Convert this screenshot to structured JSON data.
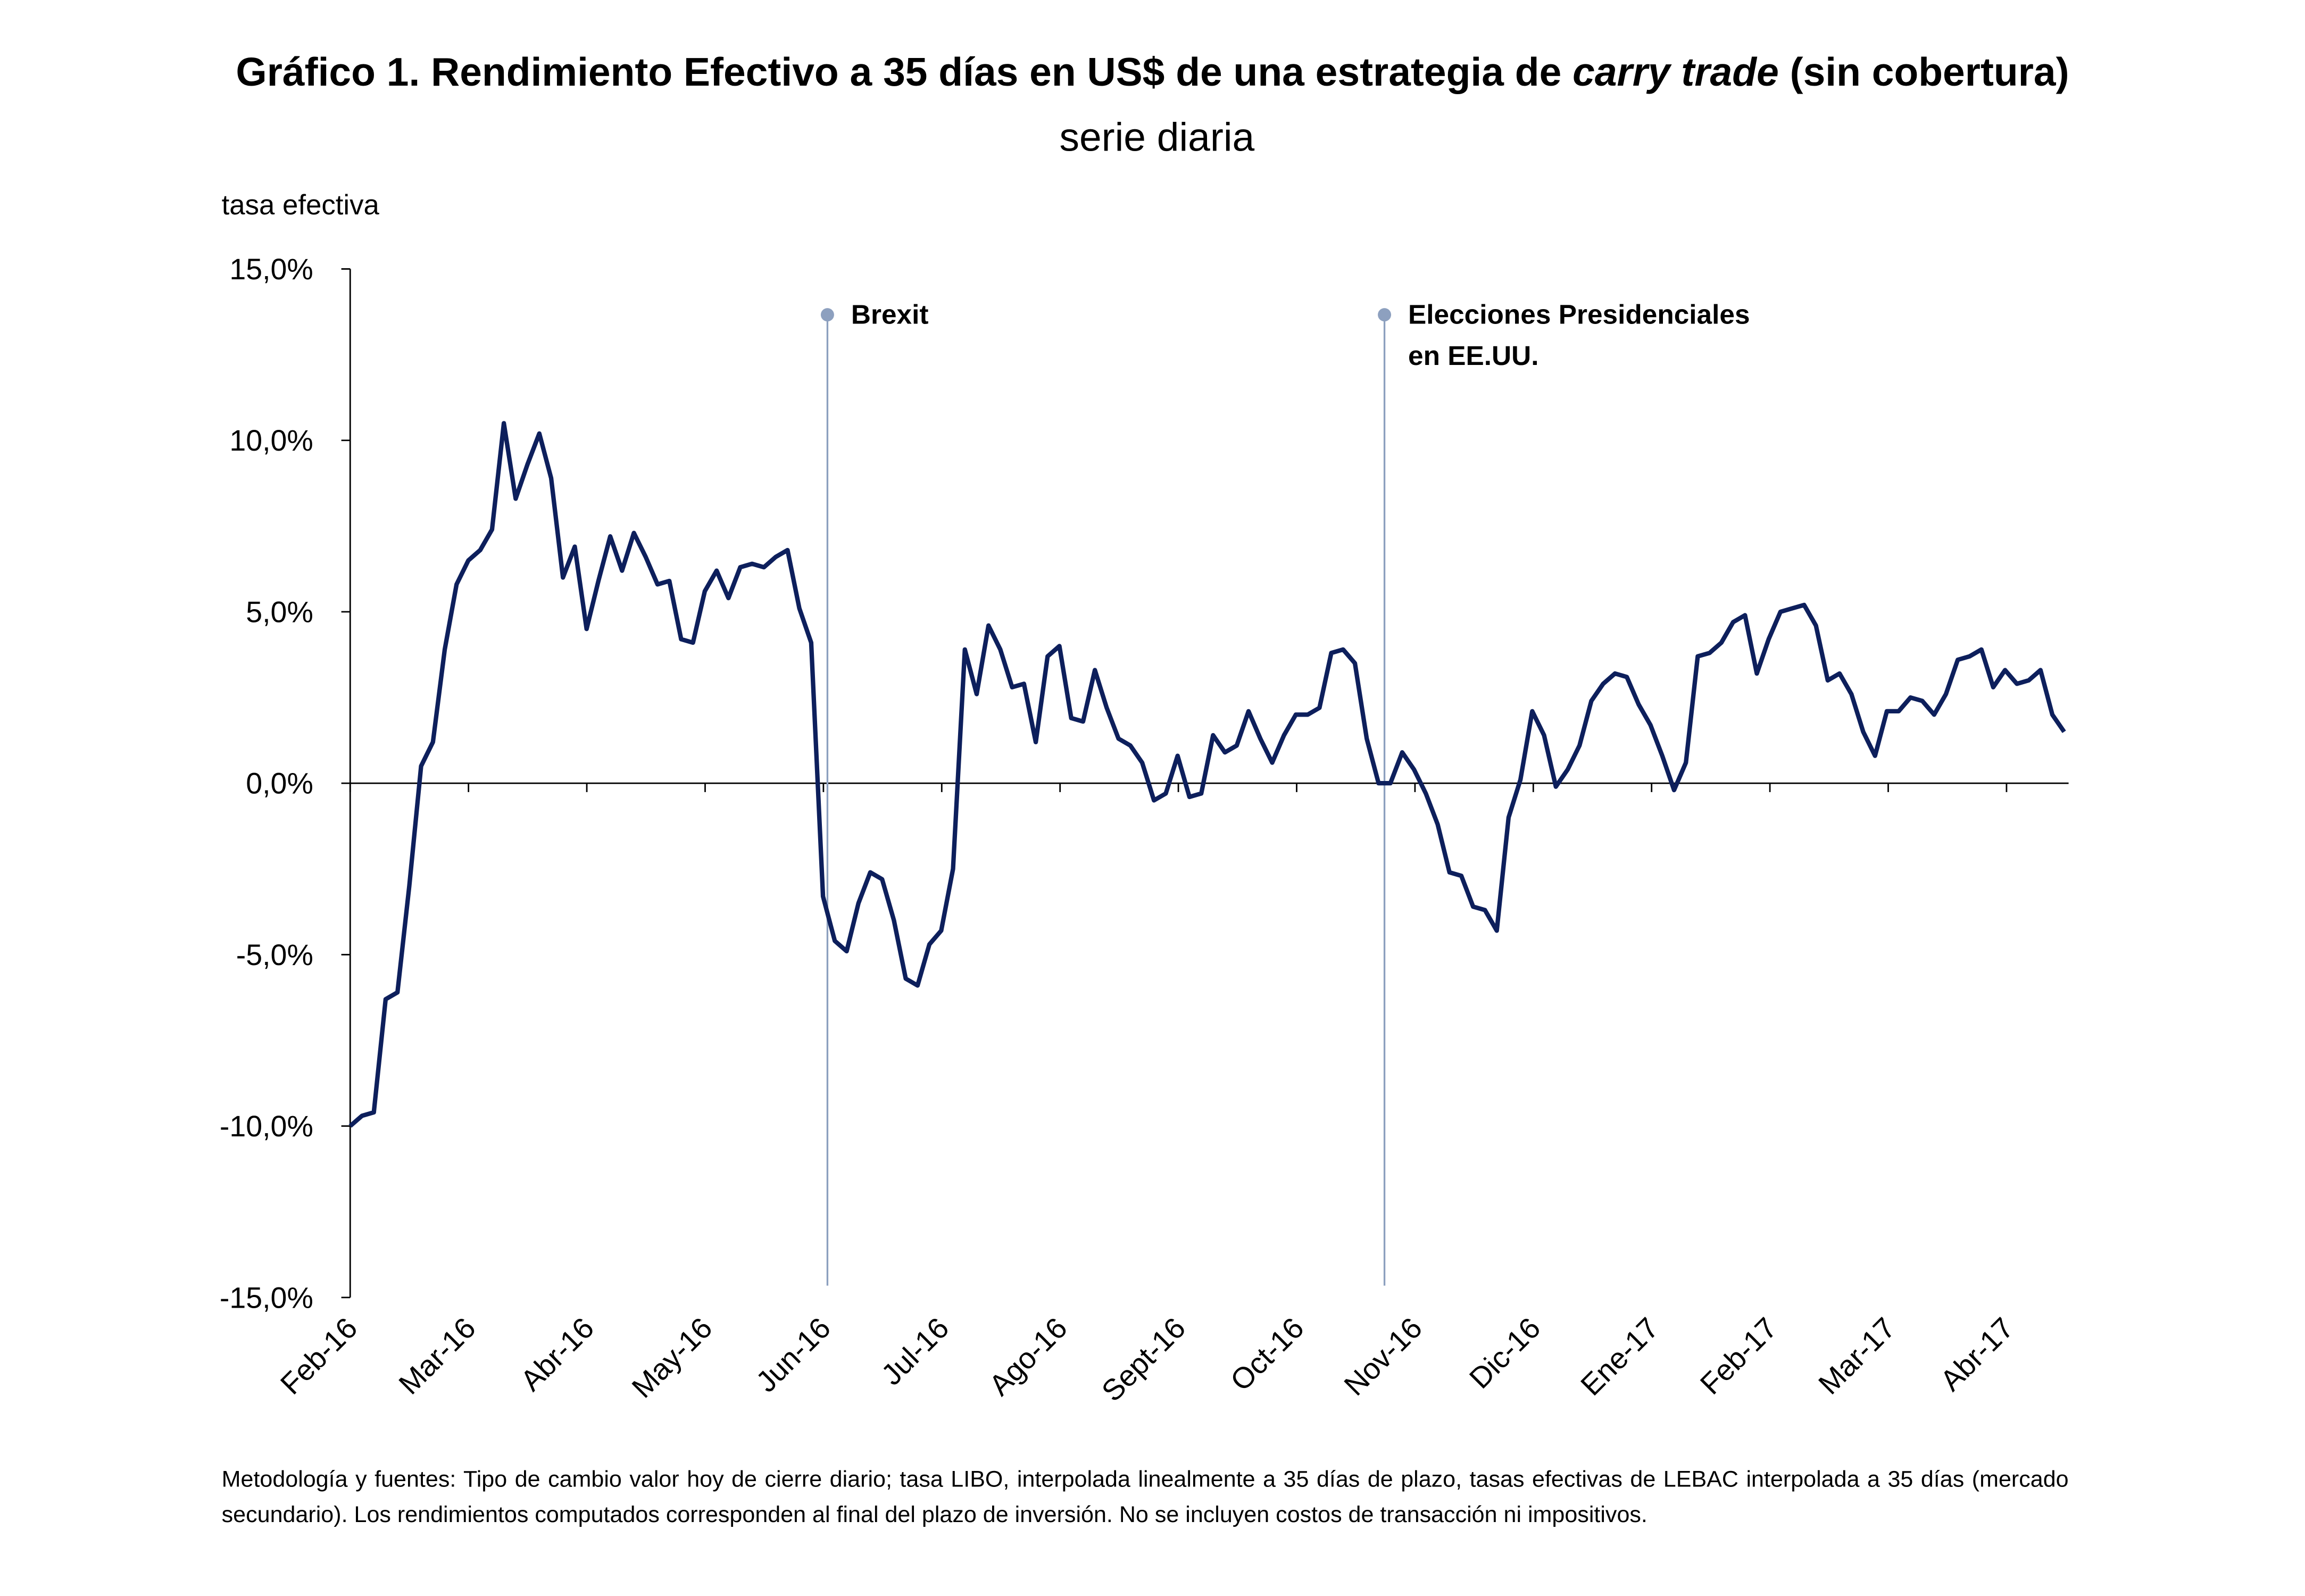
{
  "chart_data": {
    "type": "line",
    "title": [
      "Gráfico 1. Rendimiento Efectivo a 35 días en US$ de una estrategia de",
      "carry trade",
      "(sin cobertura)"
    ],
    "subtitle": "serie diaria",
    "y_axis_label": "tasa efectiva",
    "xticks": [
      "Feb-16",
      "Mar-16",
      "Abr-16",
      "May-16",
      "Jun-16",
      "Jul-16",
      "Ago-16",
      "Sept-16",
      "Oct-16",
      "Nov-16",
      "Dic-16",
      "Ene-17",
      "Feb-17",
      "Mar-17",
      "Abr-17"
    ],
    "series": [
      {
        "name": "Rendimiento Efectivo",
        "color": "#0d1f5c",
        "values": [
          -10.0,
          -9.7,
          -9.6,
          -6.3,
          -6.1,
          -3.0,
          0.5,
          1.2,
          3.9,
          5.8,
          6.5,
          6.8,
          7.4,
          10.5,
          8.3,
          9.3,
          10.2,
          8.9,
          6.0,
          6.9,
          4.5,
          5.9,
          7.2,
          6.2,
          7.3,
          6.6,
          5.8,
          5.9,
          4.2,
          4.1,
          5.6,
          6.2,
          5.4,
          6.3,
          6.4,
          6.3,
          6.6,
          6.8,
          5.1,
          4.1,
          -3.3,
          -4.6,
          -4.9,
          -3.5,
          -2.6,
          -2.8,
          -4.0,
          -5.7,
          -5.9,
          -4.7,
          -4.3,
          -2.5,
          3.9,
          2.6,
          4.6,
          3.9,
          2.8,
          2.9,
          1.2,
          3.7,
          4.0,
          1.9,
          1.8,
          3.3,
          2.2,
          1.3,
          1.1,
          0.6,
          -0.5,
          -0.3,
          0.8,
          -0.4,
          -0.3,
          1.4,
          0.9,
          1.1,
          2.1,
          1.3,
          0.6,
          1.4,
          2.0,
          2.0,
          2.2,
          3.8,
          3.9,
          3.5,
          1.3,
          0.0,
          0.0,
          0.9,
          0.4,
          -0.3,
          -1.2,
          -2.6,
          -2.7,
          -3.6,
          -3.7,
          -4.3,
          -1.0,
          0.1,
          2.1,
          1.4,
          -0.1,
          0.4,
          1.1,
          2.4,
          2.9,
          3.2,
          3.1,
          2.3,
          1.7,
          0.8,
          -0.2,
          0.6,
          3.7,
          3.8,
          4.1,
          4.7,
          4.9,
          3.2,
          4.2,
          5.0,
          5.1,
          5.2,
          4.6,
          3.0,
          3.2,
          2.6,
          1.5,
          0.8,
          2.1,
          2.1,
          2.5,
          2.4,
          2.0,
          2.6,
          3.6,
          3.7,
          3.9,
          2.8,
          3.3,
          2.9,
          3.0,
          3.3,
          2.0,
          1.5
        ]
      }
    ],
    "ylim": [
      -15,
      15
    ],
    "yticks": [
      {
        "value": -15,
        "label": "-15,0%"
      },
      {
        "value": -10,
        "label": "-10,0%"
      },
      {
        "value": -5,
        "label": "-5,0%"
      },
      {
        "value": 0,
        "label": "0,0%"
      },
      {
        "value": 5,
        "label": "5,0%"
      },
      {
        "value": 10,
        "label": "10,0%"
      },
      {
        "value": 15,
        "label": "15,0%"
      }
    ],
    "annotations": [
      {
        "text": [
          "Brexit"
        ]
      },
      {
        "text": [
          "Elecciones Presidenciales",
          "en EE.UU."
        ]
      }
    ],
    "note": "Metodología y fuentes: Tipo de cambio valor hoy de cierre diario; tasa LIBO, interpolada linealmente a 35 días de plazo, tasas efectivas de LEBAC interpolada a 35 días (mercado secundario). Los rendimientos computados corresponden al final del plazo de inversión. No se incluyen costos de transacción ni impositivos."
  }
}
